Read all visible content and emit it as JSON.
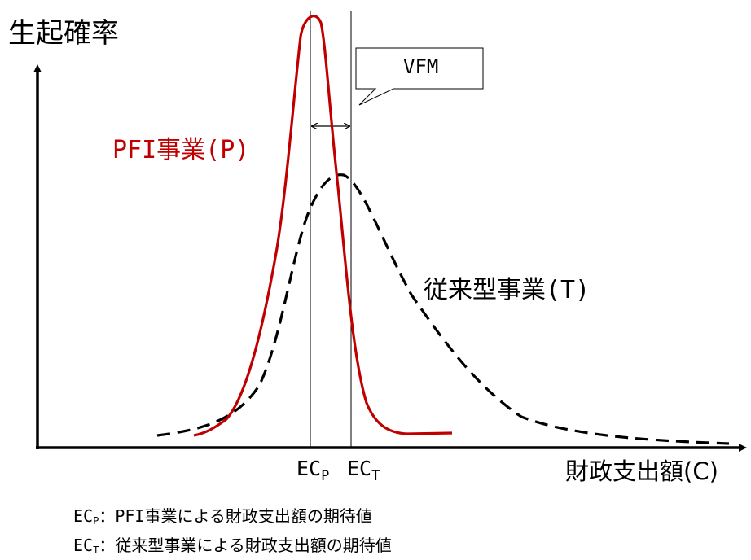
{
  "y_axis_label": "生起確率",
  "x_axis_label": "財政支出額(C)",
  "callout_label": "VFM",
  "ticks": {
    "ecp": {
      "main": "EC",
      "sub": "P"
    },
    "ect": {
      "main": "EC",
      "sub": "T"
    }
  },
  "series": {
    "pfi": {
      "label": "PFI事業(P)",
      "color": "#c00000"
    },
    "traditional": {
      "label": "従来型事業(T)",
      "color": "#000000"
    }
  },
  "legend": [
    {
      "main": "EC",
      "sub": "P",
      "text": "：PFI事業による財政支出額の期待値"
    },
    {
      "main": "EC",
      "sub": "T",
      "text": "：従来型事業による財政支出額の期待値"
    }
  ]
}
